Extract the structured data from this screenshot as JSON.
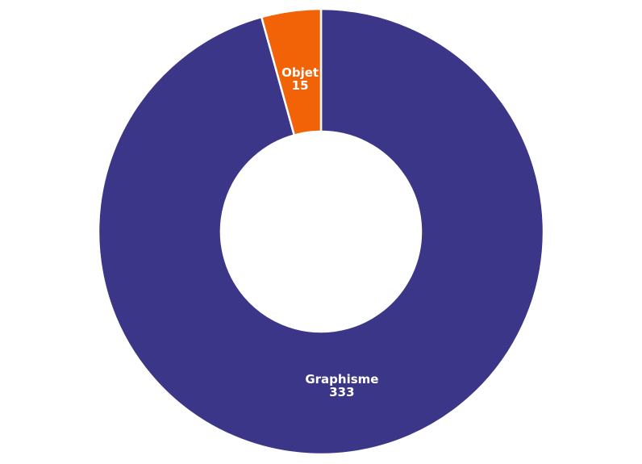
{
  "chart_data": {
    "type": "pie",
    "variant": "donut",
    "title": "",
    "slices": [
      {
        "label": "Graphisme",
        "value": 333,
        "color": "#3c3689"
      },
      {
        "label": "Objet",
        "value": 15,
        "color": "#f26207"
      }
    ],
    "labels_show_value": true,
    "legend": "none"
  }
}
